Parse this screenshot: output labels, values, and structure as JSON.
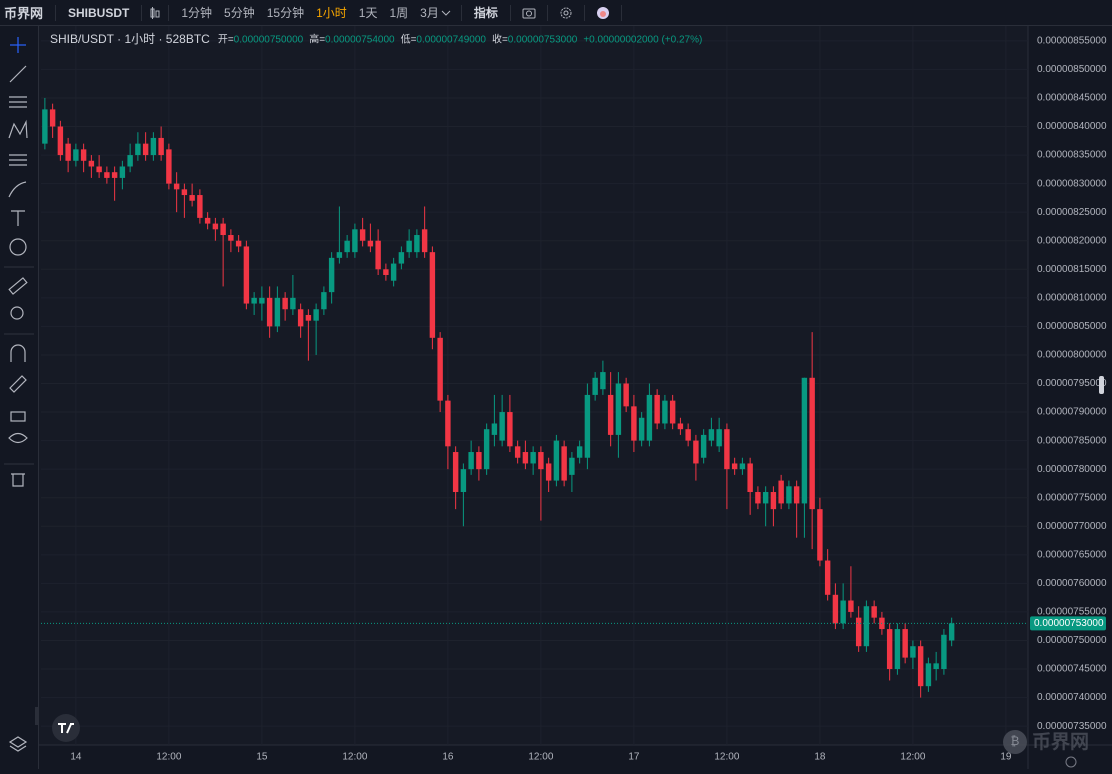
{
  "topbar": {
    "logo": "币界网",
    "symbol": "SHIBUSDT",
    "intervals": [
      "1分钟",
      "5分钟",
      "15分钟",
      "1小时",
      "1天",
      "1周",
      "3月"
    ],
    "active_interval": 3,
    "indicators": "指标"
  },
  "legend": {
    "title": "SHIB/USDT · 1小时 · 528BTC",
    "open_label": "开=",
    "open": "0.00000750000",
    "high_label": "高=",
    "high": "0.00000754000",
    "low_label": "低=",
    "low": "0.00000749000",
    "close_label": "收=",
    "close": "0.00000753000",
    "change": "+0.00000002000 (+0.27%)"
  },
  "watermark": "币界网",
  "chart_data": {
    "type": "candlestick",
    "up_color": "#089981",
    "down_color": "#f23645",
    "grid": true,
    "xlim": [
      -0.5,
      126.85
    ],
    "xticks": [
      {
        "value": 4,
        "label": "14"
      },
      {
        "value": 16,
        "label": "12:00"
      },
      {
        "value": 28,
        "label": "15"
      },
      {
        "value": 40,
        "label": "12:00"
      },
      {
        "value": 52,
        "label": "16"
      },
      {
        "value": 64,
        "label": "12:00"
      },
      {
        "value": 76,
        "label": "17"
      },
      {
        "value": 88,
        "label": "12:00"
      },
      {
        "value": 100,
        "label": "18"
      },
      {
        "value": 112,
        "label": "12:00"
      },
      {
        "value": 124,
        "label": "19"
      }
    ],
    "ylim": [
      7.317e-06,
      8.576e-06
    ],
    "yticks": [
      {
        "value": 8.55e-06,
        "label": "0.00000855000"
      },
      {
        "value": 8.5e-06,
        "label": "0.00000850000"
      },
      {
        "value": 8.45e-06,
        "label": "0.00000845000"
      },
      {
        "value": 8.4e-06,
        "label": "0.00000840000"
      },
      {
        "value": 8.35e-06,
        "label": "0.00000835000"
      },
      {
        "value": 8.3e-06,
        "label": "0.00000830000"
      },
      {
        "value": 8.25e-06,
        "label": "0.00000825000"
      },
      {
        "value": 8.2e-06,
        "label": "0.00000820000"
      },
      {
        "value": 8.15e-06,
        "label": "0.00000815000"
      },
      {
        "value": 8.1e-06,
        "label": "0.00000810000"
      },
      {
        "value": 8.05e-06,
        "label": "0.00000805000"
      },
      {
        "value": 8e-06,
        "label": "0.00000800000"
      },
      {
        "value": 7.95e-06,
        "label": "0.00000795000"
      },
      {
        "value": 7.9e-06,
        "label": "0.00000790000"
      },
      {
        "value": 7.85e-06,
        "label": "0.00000785000"
      },
      {
        "value": 7.8e-06,
        "label": "0.00000780000"
      },
      {
        "value": 7.75e-06,
        "label": "0.00000775000"
      },
      {
        "value": 7.7e-06,
        "label": "0.00000770000"
      },
      {
        "value": 7.65e-06,
        "label": "0.00000765000"
      },
      {
        "value": 7.6e-06,
        "label": "0.00000760000"
      },
      {
        "value": 7.55e-06,
        "label": "0.00000755000"
      },
      {
        "value": 7.5e-06,
        "label": "0.00000750000"
      },
      {
        "value": 7.45e-06,
        "label": "0.00000745000"
      },
      {
        "value": 7.4e-06,
        "label": "0.00000740000"
      },
      {
        "value": 7.35e-06,
        "label": "0.00000735000"
      }
    ],
    "last_price": {
      "value": 7.53e-06,
      "label": "0.00000753000"
    },
    "open": [
      8.37e-06,
      8.43e-06,
      8.4e-06,
      8.37e-06,
      8.34e-06,
      8.36e-06,
      8.34e-06,
      8.33e-06,
      8.32e-06,
      8.32e-06,
      8.31e-06,
      8.33e-06,
      8.35e-06,
      8.37e-06,
      8.35e-06,
      8.38e-06,
      8.36e-06,
      8.3e-06,
      8.29e-06,
      8.28e-06,
      8.28e-06,
      8.24e-06,
      8.23e-06,
      8.23e-06,
      8.21e-06,
      8.2e-06,
      8.19e-06,
      8.09e-06,
      8.09e-06,
      8.1e-06,
      8.05e-06,
      8.1e-06,
      8.08e-06,
      8.08e-06,
      8.07e-06,
      8.06e-06,
      8.08e-06,
      8.11e-06,
      8.17e-06,
      8.18e-06,
      8.18e-06,
      8.22e-06,
      8.2e-06,
      8.2e-06,
      8.15e-06,
      8.13e-06,
      8.16e-06,
      8.18e-06,
      8.18e-06,
      8.22e-06,
      8.18e-06,
      8.03e-06,
      7.92e-06,
      7.83e-06,
      7.76e-06,
      7.8e-06,
      7.83e-06,
      7.8e-06,
      7.86e-06,
      7.85e-06,
      7.9e-06,
      7.84e-06,
      7.83e-06,
      7.81e-06,
      7.83e-06,
      7.81e-06,
      7.78e-06,
      7.84e-06,
      7.79e-06,
      7.82e-06,
      7.82e-06,
      7.93e-06,
      7.94e-06,
      7.93e-06,
      7.86e-06,
      7.95e-06,
      7.91e-06,
      7.85e-06,
      7.85e-06,
      7.93e-06,
      7.88e-06,
      7.92e-06,
      7.88e-06,
      7.87e-06,
      7.85e-06,
      7.82e-06,
      7.85e-06,
      7.84e-06,
      7.87e-06,
      7.81e-06,
      7.8e-06,
      7.81e-06,
      7.76e-06,
      7.74e-06,
      7.76e-06,
      7.78e-06,
      7.74e-06,
      7.77e-06,
      7.74e-06,
      7.96e-06,
      7.73e-06,
      7.64e-06,
      7.58e-06,
      7.53e-06,
      7.57e-06,
      7.54e-06,
      7.49e-06,
      7.56e-06,
      7.54e-06,
      7.52e-06,
      7.45e-06,
      7.52e-06,
      7.47e-06,
      7.49e-06,
      7.42e-06,
      7.45e-06,
      7.45e-06,
      7.5e-06
    ],
    "high": [
      8.45e-06,
      8.44e-06,
      8.41e-06,
      8.38e-06,
      8.37e-06,
      8.37e-06,
      8.35e-06,
      8.35e-06,
      8.33e-06,
      8.33e-06,
      8.34e-06,
      8.37e-06,
      8.39e-06,
      8.39e-06,
      8.39e-06,
      8.4e-06,
      8.37e-06,
      8.32e-06,
      8.3e-06,
      8.3e-06,
      8.29e-06,
      8.25e-06,
      8.24e-06,
      8.24e-06,
      8.22e-06,
      8.21e-06,
      8.2e-06,
      8.11e-06,
      8.12e-06,
      8.12e-06,
      8.12e-06,
      8.11e-06,
      8.14e-06,
      8.09e-06,
      8.08e-06,
      8.09e-06,
      8.12e-06,
      8.18e-06,
      8.26e-06,
      8.21e-06,
      8.23e-06,
      8.24e-06,
      8.23e-06,
      8.22e-06,
      8.16e-06,
      8.17e-06,
      8.19e-06,
      8.22e-06,
      8.22e-06,
      8.26e-06,
      8.19e-06,
      8.04e-06,
      7.93e-06,
      7.84e-06,
      7.81e-06,
      7.85e-06,
      7.84e-06,
      7.88e-06,
      7.93e-06,
      7.93e-06,
      7.93e-06,
      7.85e-06,
      7.85e-06,
      7.84e-06,
      7.84e-06,
      7.82e-06,
      7.86e-06,
      7.85e-06,
      7.83e-06,
      7.85e-06,
      7.95e-06,
      7.97e-06,
      7.99e-06,
      7.97e-06,
      7.97e-06,
      7.96e-06,
      7.93e-06,
      7.9e-06,
      7.95e-06,
      7.94e-06,
      7.93e-06,
      7.93e-06,
      7.89e-06,
      7.88e-06,
      7.86e-06,
      7.87e-06,
      7.89e-06,
      7.89e-06,
      7.88e-06,
      7.82e-06,
      7.82e-06,
      7.82e-06,
      7.77e-06,
      7.77e-06,
      7.77e-06,
      7.79e-06,
      7.78e-06,
      7.78e-06,
      7.96e-06,
      8.04e-06,
      7.75e-06,
      7.66e-06,
      7.6e-06,
      7.6e-06,
      7.63e-06,
      7.56e-06,
      7.57e-06,
      7.57e-06,
      7.55e-06,
      7.53e-06,
      7.53e-06,
      7.53e-06,
      7.5e-06,
      7.5e-06,
      7.47e-06,
      7.48e-06,
      7.52e-06,
      7.54e-06
    ],
    "low": [
      8.36e-06,
      8.38e-06,
      8.34e-06,
      8.32e-06,
      8.33e-06,
      8.32e-06,
      8.31e-06,
      8.31e-06,
      8.3e-06,
      8.27e-06,
      8.29e-06,
      8.32e-06,
      8.34e-06,
      8.34e-06,
      8.34e-06,
      8.34e-06,
      8.29e-06,
      8.25e-06,
      8.24e-06,
      8.26e-06,
      8.23e-06,
      8.22e-06,
      8.2e-06,
      8.12e-06,
      8.18e-06,
      8.18e-06,
      8.08e-06,
      8.07e-06,
      8.06e-06,
      8.03e-06,
      8.04e-06,
      8.06e-06,
      8.07e-06,
      8.03e-06,
      7.99e-06,
      8e-06,
      8.07e-06,
      8.09e-06,
      8.16e-06,
      8.17e-06,
      8.17e-06,
      8.19e-06,
      8.18e-06,
      8.14e-06,
      8.13e-06,
      8.12e-06,
      8.15e-06,
      8.17e-06,
      8.17e-06,
      8.17e-06,
      8.01e-06,
      7.9e-06,
      7.8e-06,
      7.73e-06,
      7.7e-06,
      7.79e-06,
      7.78e-06,
      7.79e-06,
      7.84e-06,
      7.84e-06,
      7.83e-06,
      7.81e-06,
      7.8e-06,
      7.79e-06,
      7.71e-06,
      7.76e-06,
      7.77e-06,
      7.77e-06,
      7.76e-06,
      7.81e-06,
      7.8e-06,
      7.92e-06,
      7.93e-06,
      7.84e-06,
      7.82e-06,
      7.9e-06,
      7.83e-06,
      7.84e-06,
      7.84e-06,
      7.87e-06,
      7.87e-06,
      7.87e-06,
      7.86e-06,
      7.84e-06,
      7.78e-06,
      7.81e-06,
      7.84e-06,
      7.83e-06,
      7.73e-06,
      7.79e-06,
      7.79e-06,
      7.72e-06,
      7.73e-06,
      7.7e-06,
      7.7e-06,
      7.73e-06,
      7.73e-06,
      7.68e-06,
      7.68e-06,
      7.66e-06,
      7.63e-06,
      7.57e-06,
      7.52e-06,
      7.52e-06,
      7.54e-06,
      7.48e-06,
      7.48e-06,
      7.53e-06,
      7.51e-06,
      7.43e-06,
      7.44e-06,
      7.46e-06,
      7.45e-06,
      7.4e-06,
      7.41e-06,
      7.43e-06,
      7.44e-06,
      7.49e-06
    ],
    "close": [
      8.43e-06,
      8.4e-06,
      8.35e-06,
      8.34e-06,
      8.36e-06,
      8.34e-06,
      8.33e-06,
      8.32e-06,
      8.31e-06,
      8.31e-06,
      8.33e-06,
      8.35e-06,
      8.37e-06,
      8.35e-06,
      8.38e-06,
      8.35e-06,
      8.3e-06,
      8.29e-06,
      8.28e-06,
      8.27e-06,
      8.24e-06,
      8.23e-06,
      8.22e-06,
      8.21e-06,
      8.2e-06,
      8.19e-06,
      8.09e-06,
      8.1e-06,
      8.1e-06,
      8.05e-06,
      8.1e-06,
      8.08e-06,
      8.1e-06,
      8.05e-06,
      8.06e-06,
      8.08e-06,
      8.11e-06,
      8.17e-06,
      8.18e-06,
      8.2e-06,
      8.22e-06,
      8.2e-06,
      8.19e-06,
      8.15e-06,
      8.14e-06,
      8.16e-06,
      8.18e-06,
      8.2e-06,
      8.21e-06,
      8.18e-06,
      8.03e-06,
      7.92e-06,
      7.84e-06,
      7.76e-06,
      7.8e-06,
      7.83e-06,
      7.8e-06,
      7.87e-06,
      7.88e-06,
      7.9e-06,
      7.84e-06,
      7.82e-06,
      7.81e-06,
      7.83e-06,
      7.8e-06,
      7.78e-06,
      7.85e-06,
      7.78e-06,
      7.82e-06,
      7.84e-06,
      7.93e-06,
      7.96e-06,
      7.97e-06,
      7.86e-06,
      7.95e-06,
      7.91e-06,
      7.85e-06,
      7.89e-06,
      7.93e-06,
      7.88e-06,
      7.92e-06,
      7.88e-06,
      7.87e-06,
      7.85e-06,
      7.81e-06,
      7.86e-06,
      7.87e-06,
      7.87e-06,
      7.8e-06,
      7.8e-06,
      7.81e-06,
      7.76e-06,
      7.74e-06,
      7.76e-06,
      7.73e-06,
      7.74e-06,
      7.77e-06,
      7.74e-06,
      7.96e-06,
      7.73e-06,
      7.64e-06,
      7.58e-06,
      7.53e-06,
      7.57e-06,
      7.55e-06,
      7.49e-06,
      7.56e-06,
      7.54e-06,
      7.52e-06,
      7.45e-06,
      7.52e-06,
      7.47e-06,
      7.49e-06,
      7.42e-06,
      7.46e-06,
      7.46e-06,
      7.51e-06,
      7.53e-06
    ]
  }
}
